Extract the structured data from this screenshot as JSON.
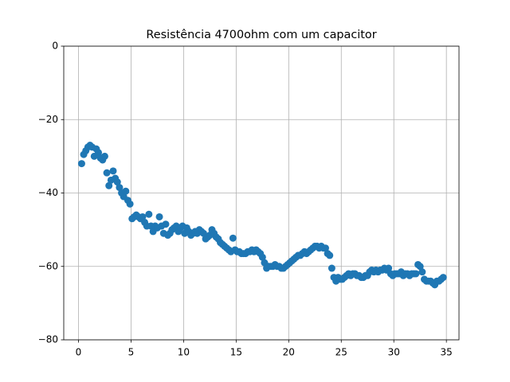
{
  "chart_data": {
    "type": "scatter",
    "title": "Resistência 4700ohm com um capacitor",
    "color": "#1f77b4",
    "grid": true,
    "xlim": [
      -1.4,
      36.2
    ],
    "xticks": [
      0,
      5,
      10,
      15,
      20,
      25,
      30,
      35
    ],
    "ylim": [
      -80,
      0
    ],
    "yticks": [
      0,
      {
        "value": -20,
        "label": "−20"
      },
      {
        "value": -40,
        "label": "−40"
      },
      {
        "value": -60,
        "label": "−60"
      },
      {
        "value": -80,
        "label": "−80"
      }
    ],
    "x": [
      0.3,
      0.5,
      0.7,
      0.9,
      1.1,
      1.3,
      1.5,
      1.7,
      1.9,
      2.1,
      2.3,
      2.5,
      2.7,
      2.9,
      3.1,
      3.3,
      3.5,
      3.7,
      3.9,
      4.1,
      4.3,
      4.5,
      4.7,
      4.9,
      5.1,
      5.3,
      5.5,
      5.7,
      5.9,
      6.1,
      6.3,
      6.5,
      6.7,
      6.9,
      7.1,
      7.3,
      7.5,
      7.7,
      7.9,
      8.1,
      8.3,
      8.5,
      8.7,
      8.9,
      9.1,
      9.3,
      9.5,
      9.7,
      9.9,
      10.1,
      10.3,
      10.5,
      10.7,
      10.9,
      11.1,
      11.3,
      11.5,
      11.7,
      11.9,
      12.1,
      12.3,
      12.5,
      12.7,
      12.9,
      13.1,
      13.3,
      13.5,
      13.7,
      13.9,
      14.1,
      14.3,
      14.5,
      14.7,
      14.9,
      15.1,
      15.3,
      15.5,
      15.7,
      15.9,
      16.1,
      16.3,
      16.5,
      16.7,
      16.9,
      17.1,
      17.3,
      17.5,
      17.7,
      17.9,
      18.1,
      18.3,
      18.5,
      18.7,
      18.9,
      19.1,
      19.3,
      19.5,
      19.7,
      19.9,
      20.1,
      20.3,
      20.5,
      20.7,
      20.9,
      21.1,
      21.3,
      21.5,
      21.7,
      21.9,
      22.1,
      22.3,
      22.5,
      22.7,
      22.9,
      23.1,
      23.3,
      23.5,
      23.7,
      23.9,
      24.1,
      24.3,
      24.5,
      24.7,
      24.9,
      25.1,
      25.3,
      25.5,
      25.7,
      25.9,
      26.1,
      26.3,
      26.5,
      26.7,
      26.9,
      27.1,
      27.3,
      27.5,
      27.7,
      27.9,
      28.1,
      28.3,
      28.5,
      28.7,
      28.9,
      29.1,
      29.3,
      29.5,
      29.7,
      29.9,
      30.1,
      30.3,
      30.5,
      30.7,
      30.9,
      31.1,
      31.3,
      31.5,
      31.7,
      31.9,
      32.1,
      32.3,
      32.5,
      32.7,
      32.9,
      33.1,
      33.3,
      33.5,
      33.7,
      33.9,
      34.1,
      34.3,
      34.5,
      34.7
    ],
    "values": [
      -32,
      -29.5,
      -28.5,
      -27.5,
      -27,
      -27.5,
      -30,
      -28,
      -29,
      -30.5,
      -31,
      -30,
      -34.5,
      -38,
      -36.5,
      -34,
      -36,
      -37,
      -38.5,
      -40,
      -41,
      -39.5,
      -42,
      -43,
      -47,
      -46.5,
      -46,
      -46.5,
      -47,
      -46.5,
      -48,
      -49,
      -45.8,
      -49,
      -50.5,
      -49,
      -49.5,
      -46.5,
      -49,
      -51,
      -48.5,
      -51.5,
      -51,
      -50,
      -49.5,
      -49,
      -50.5,
      -49.5,
      -49,
      -51,
      -49.5,
      -50.5,
      -51.5,
      -51,
      -50.5,
      -51,
      -50,
      -50.5,
      -51,
      -52.5,
      -52,
      -51.5,
      -50,
      -51,
      -52,
      -52.5,
      -53.5,
      -54,
      -54.5,
      -55,
      -55.5,
      -56,
      -52.3,
      -55.5,
      -56,
      -56,
      -56.5,
      -56.5,
      -56.5,
      -56,
      -56,
      -55.5,
      -56,
      -55.5,
      -56,
      -56.5,
      -57.5,
      -59,
      -60.5,
      -60,
      -60,
      -60,
      -59.5,
      -60,
      -60,
      -60.5,
      -60.5,
      -60,
      -59.5,
      -59,
      -58.5,
      -58,
      -57.5,
      -57,
      -57,
      -56.5,
      -56,
      -56.5,
      -56,
      -55.5,
      -55,
      -54.5,
      -54.5,
      -55,
      -54.5,
      -55,
      -55,
      -56.5,
      -57,
      -60.5,
      -63,
      -64,
      -63,
      -63.5,
      -63.5,
      -63,
      -62.5,
      -62,
      -62.5,
      -62,
      -62,
      -62.5,
      -62.5,
      -63,
      -63,
      -62.5,
      -62.5,
      -61.5,
      -61,
      -61.5,
      -61,
      -61.5,
      -61,
      -61,
      -60.5,
      -61,
      -60.5,
      -62,
      -62.5,
      -62,
      -62,
      -62,
      -61.5,
      -62.5,
      -62,
      -62,
      -62.5,
      -62,
      -62,
      -62,
      -59.5,
      -60,
      -61.5,
      -63.5,
      -64,
      -64,
      -64,
      -64.5,
      -65,
      -64,
      -64,
      -63.5,
      -63
    ]
  }
}
